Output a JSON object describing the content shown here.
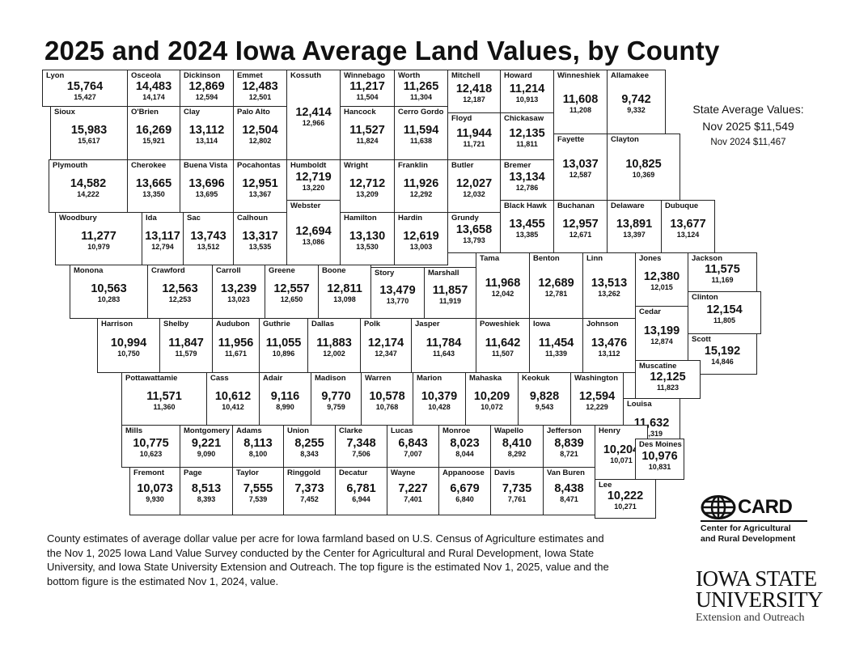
{
  "title": "2025 and 2024 Iowa Average Land Values, by County",
  "state_average": {
    "heading": "State Average Values:",
    "nov_2025": "Nov 2025 $11,549",
    "nov_2024": "Nov 2024 $11,467"
  },
  "counties": [
    {
      "name": "Lyon",
      "v2025": "15,764",
      "v2024": "15,427"
    },
    {
      "name": "Osceola",
      "v2025": "14,483",
      "v2024": "14,174"
    },
    {
      "name": "Dickinson",
      "v2025": "12,869",
      "v2024": "12,594"
    },
    {
      "name": "Emmet",
      "v2025": "12,483",
      "v2024": "12,501"
    },
    {
      "name": "Kossuth",
      "v2025": "12,414",
      "v2024": "12,966"
    },
    {
      "name": "Winnebago",
      "v2025": "11,217",
      "v2024": "11,504"
    },
    {
      "name": "Worth",
      "v2025": "11,265",
      "v2024": "11,304"
    },
    {
      "name": "Mitchell",
      "v2025": "12,418",
      "v2024": "12,187"
    },
    {
      "name": "Howard",
      "v2025": "11,214",
      "v2024": "10,913"
    },
    {
      "name": "Winneshiek",
      "v2025": "11,608",
      "v2024": "11,208"
    },
    {
      "name": "Allamakee",
      "v2025": "9,742",
      "v2024": "9,332"
    },
    {
      "name": "Sioux",
      "v2025": "15,983",
      "v2024": "15,617"
    },
    {
      "name": "O'Brien",
      "v2025": "16,269",
      "v2024": "15,921"
    },
    {
      "name": "Clay",
      "v2025": "13,112",
      "v2024": "13,114"
    },
    {
      "name": "Palo Alto",
      "v2025": "12,504",
      "v2024": "12,802"
    },
    {
      "name": "Hancock",
      "v2025": "11,527",
      "v2024": "11,824"
    },
    {
      "name": "Cerro Gordo",
      "v2025": "11,594",
      "v2024": "11,638"
    },
    {
      "name": "Floyd",
      "v2025": "11,944",
      "v2024": "11,721"
    },
    {
      "name": "Chickasaw",
      "v2025": "12,135",
      "v2024": "11,811"
    },
    {
      "name": "Fayette",
      "v2025": "13,037",
      "v2024": "12,587"
    },
    {
      "name": "Clayton",
      "v2025": "10,825",
      "v2024": "10,369"
    },
    {
      "name": "Plymouth",
      "v2025": "14,582",
      "v2024": "14,222"
    },
    {
      "name": "Cherokee",
      "v2025": "13,665",
      "v2024": "13,350"
    },
    {
      "name": "Buena Vista",
      "v2025": "13,696",
      "v2024": "13,695"
    },
    {
      "name": "Pocahontas",
      "v2025": "12,951",
      "v2024": "13,367"
    },
    {
      "name": "Humboldt",
      "v2025": "12,719",
      "v2024": "13,220"
    },
    {
      "name": "Wright",
      "v2025": "12,712",
      "v2024": "13,209"
    },
    {
      "name": "Franklin",
      "v2025": "11,926",
      "v2024": "12,292"
    },
    {
      "name": "Butler",
      "v2025": "12,027",
      "v2024": "12,032"
    },
    {
      "name": "Bremer",
      "v2025": "13,134",
      "v2024": "12,786"
    },
    {
      "name": "Webster",
      "v2025": "12,694",
      "v2024": "13,086"
    },
    {
      "name": "Black Hawk",
      "v2025": "13,455",
      "v2024": "13,385"
    },
    {
      "name": "Buchanan",
      "v2025": "12,957",
      "v2024": "12,671"
    },
    {
      "name": "Delaware",
      "v2025": "13,891",
      "v2024": "13,397"
    },
    {
      "name": "Dubuque",
      "v2025": "13,677",
      "v2024": "13,124"
    },
    {
      "name": "Woodbury",
      "v2025": "11,277",
      "v2024": "10,979"
    },
    {
      "name": "Ida",
      "v2025": "13,117",
      "v2024": "12,794"
    },
    {
      "name": "Sac",
      "v2025": "13,743",
      "v2024": "13,512"
    },
    {
      "name": "Calhoun",
      "v2025": "13,317",
      "v2024": "13,535"
    },
    {
      "name": "Hamilton",
      "v2025": "13,130",
      "v2024": "13,530"
    },
    {
      "name": "Hardin",
      "v2025": "12,619",
      "v2024": "13,003"
    },
    {
      "name": "Grundy",
      "v2025": "13,658",
      "v2024": "13,793"
    },
    {
      "name": "Tama",
      "v2025": "11,968",
      "v2024": "12,042"
    },
    {
      "name": "Benton",
      "v2025": "12,689",
      "v2024": "12,781"
    },
    {
      "name": "Linn",
      "v2025": "13,513",
      "v2024": "13,262"
    },
    {
      "name": "Jones",
      "v2025": "12,380",
      "v2024": "12,015"
    },
    {
      "name": "Jackson",
      "v2025": "11,575",
      "v2024": "11,169"
    },
    {
      "name": "Monona",
      "v2025": "10,563",
      "v2024": "10,283"
    },
    {
      "name": "Crawford",
      "v2025": "12,563",
      "v2024": "12,253"
    },
    {
      "name": "Carroll",
      "v2025": "13,239",
      "v2024": "13,023"
    },
    {
      "name": "Greene",
      "v2025": "12,557",
      "v2024": "12,650"
    },
    {
      "name": "Boone",
      "v2025": "12,811",
      "v2024": "13,098"
    },
    {
      "name": "Story",
      "v2025": "13,479",
      "v2024": "13,770"
    },
    {
      "name": "Marshall",
      "v2025": "11,857",
      "v2024": "11,919"
    },
    {
      "name": "Clinton",
      "v2025": "12,154",
      "v2024": "11,805"
    },
    {
      "name": "Cedar",
      "v2025": "13,199",
      "v2024": "12,874"
    },
    {
      "name": "Scott",
      "v2025": "15,192",
      "v2024": "14,846"
    },
    {
      "name": "Harrison",
      "v2025": "10,994",
      "v2024": "10,750"
    },
    {
      "name": "Shelby",
      "v2025": "11,847",
      "v2024": "11,579"
    },
    {
      "name": "Audubon",
      "v2025": "11,956",
      "v2024": "11,671"
    },
    {
      "name": "Guthrie",
      "v2025": "11,055",
      "v2024": "10,896"
    },
    {
      "name": "Dallas",
      "v2025": "11,883",
      "v2024": "12,002"
    },
    {
      "name": "Polk",
      "v2025": "12,174",
      "v2024": "12,347"
    },
    {
      "name": "Jasper",
      "v2025": "11,784",
      "v2024": "11,643"
    },
    {
      "name": "Poweshiek",
      "v2025": "11,642",
      "v2024": "11,507"
    },
    {
      "name": "Iowa",
      "v2025": "11,454",
      "v2024": "11,339"
    },
    {
      "name": "Johnson",
      "v2025": "13,476",
      "v2024": "13,112"
    },
    {
      "name": "Muscatine",
      "v2025": "12,125",
      "v2024": "11,823"
    },
    {
      "name": "Pottawattamie",
      "v2025": "11,571",
      "v2024": "11,360"
    },
    {
      "name": "Cass",
      "v2025": "10,612",
      "v2024": "10,412"
    },
    {
      "name": "Adair",
      "v2025": "9,116",
      "v2024": "8,990"
    },
    {
      "name": "Madison",
      "v2025": "9,770",
      "v2024": "9,759"
    },
    {
      "name": "Warren",
      "v2025": "10,578",
      "v2024": "10,768"
    },
    {
      "name": "Marion",
      "v2025": "10,379",
      "v2024": "10,428"
    },
    {
      "name": "Mahaska",
      "v2025": "10,209",
      "v2024": "10,072"
    },
    {
      "name": "Keokuk",
      "v2025": "9,828",
      "v2024": "9,543"
    },
    {
      "name": "Washington",
      "v2025": "12,594",
      "v2024": "12,229"
    },
    {
      "name": "Louisa",
      "v2025": "11,632",
      "v2024": "11,319"
    },
    {
      "name": "Mills",
      "v2025": "10,775",
      "v2024": "10,623"
    },
    {
      "name": "Montgomery",
      "v2025": "9,221",
      "v2024": "9,090"
    },
    {
      "name": "Adams",
      "v2025": "8,113",
      "v2024": "8,100"
    },
    {
      "name": "Union",
      "v2025": "8,255",
      "v2024": "8,343"
    },
    {
      "name": "Clarke",
      "v2025": "7,348",
      "v2024": "7,506"
    },
    {
      "name": "Lucas",
      "v2025": "6,843",
      "v2024": "7,007"
    },
    {
      "name": "Monroe",
      "v2025": "8,023",
      "v2024": "8,044"
    },
    {
      "name": "Wapello",
      "v2025": "8,410",
      "v2024": "8,292"
    },
    {
      "name": "Jefferson",
      "v2025": "8,839",
      "v2024": "8,721"
    },
    {
      "name": "Henry",
      "v2025": "10,204",
      "v2024": "10,071"
    },
    {
      "name": "Des Moines",
      "v2025": "10,976",
      "v2024": "10,831"
    },
    {
      "name": "Fremont",
      "v2025": "10,073",
      "v2024": "9,930"
    },
    {
      "name": "Page",
      "v2025": "8,513",
      "v2024": "8,393"
    },
    {
      "name": "Taylor",
      "v2025": "7,555",
      "v2024": "7,539"
    },
    {
      "name": "Ringgold",
      "v2025": "7,373",
      "v2024": "7,452"
    },
    {
      "name": "Decatur",
      "v2025": "6,781",
      "v2024": "6,944"
    },
    {
      "name": "Wayne",
      "v2025": "7,227",
      "v2024": "7,401"
    },
    {
      "name": "Appanoose",
      "v2025": "6,679",
      "v2024": "6,840"
    },
    {
      "name": "Davis",
      "v2025": "7,735",
      "v2024": "7,761"
    },
    {
      "name": "Van Buren",
      "v2025": "8,438",
      "v2024": "8,471"
    },
    {
      "name": "Lee",
      "v2025": "10,222",
      "v2024": "10,271"
    }
  ],
  "footnote": "County estimates of average dollar value per acre for Iowa farmland based on U.S. Census of Agriculture estimates and the Nov 1, 2025 Iowa Land Value Survey conducted by the Center for Agricultural and Rural Development, Iowa State University, and Iowa State University Extension and Outreach. The top figure is the estimated Nov 1, 2025, value and the bottom figure is the estimated Nov 1, 2024, value.",
  "logos": {
    "card_word": "CARD",
    "card_line1": "Center for Agricultural",
    "card_line2": "and Rural Development",
    "isu_line1": "IOWA STATE",
    "isu_line2": "UNIVERSITY",
    "isu_line3": "Extension and Outreach"
  }
}
